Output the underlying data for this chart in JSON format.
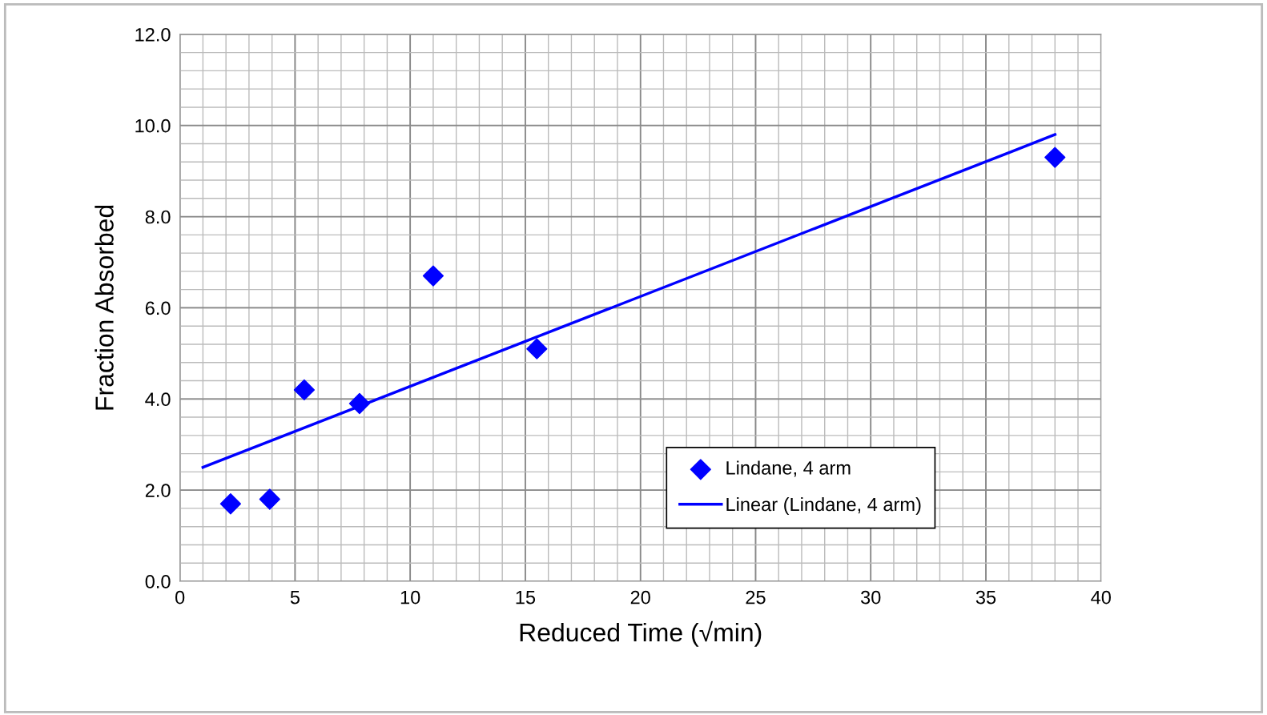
{
  "chart_data": {
    "type": "scatter",
    "xlabel": "Reduced Time (√min)",
    "ylabel": "Fraction Absorbed",
    "xlim": [
      0,
      40
    ],
    "xticks": [
      0,
      5,
      10,
      15,
      20,
      25,
      30,
      35,
      40
    ],
    "ylim": [
      0,
      12
    ],
    "yticks": [
      {
        "value": 0,
        "label": "0.0"
      },
      {
        "value": 2,
        "label": "2.0"
      },
      {
        "value": 4,
        "label": "4.0"
      },
      {
        "value": 6,
        "label": "6.0"
      },
      {
        "value": 8,
        "label": "8.0"
      },
      {
        "value": 10,
        "label": "10.0"
      },
      {
        "value": 12,
        "label": "12.0"
      }
    ],
    "grid": true,
    "legend": "bottom right",
    "series": [
      {
        "name": "Lindane, 4 arm",
        "marker": "diamond",
        "color": "#0000ff",
        "x": [
          2.2,
          3.9,
          5.4,
          7.8,
          11.0,
          15.5,
          38.0
        ],
        "values": [
          1.7,
          1.8,
          4.2,
          3.9,
          6.7,
          5.1,
          9.3
        ]
      },
      {
        "name": "Linear (Lindane, 4 arm)",
        "type": "line",
        "marker": "none",
        "line_style": "solid",
        "color": "#0000ff",
        "x": [
          1.0,
          38.0
        ],
        "values": [
          2.5,
          9.8
        ]
      }
    ]
  }
}
